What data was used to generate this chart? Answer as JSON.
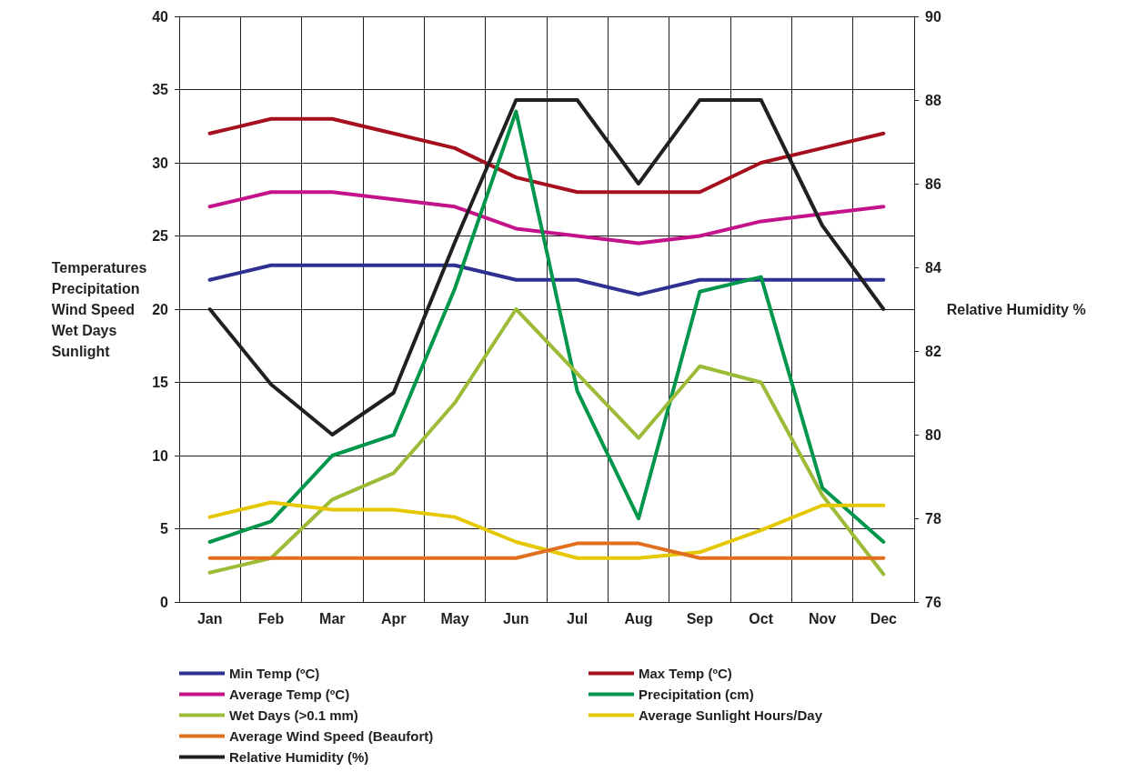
{
  "chart_data": {
    "type": "line",
    "categories": [
      "Jan",
      "Feb",
      "Mar",
      "Apr",
      "May",
      "Jun",
      "Jul",
      "Aug",
      "Sep",
      "Oct",
      "Nov",
      "Dec"
    ],
    "ylabel": "Temperatures\nPrecipitation\nWind Speed\nWet Days\nSunlight",
    "y2label": "Relative Humidity %",
    "ylim": [
      0,
      40
    ],
    "yticks": [
      0,
      5,
      10,
      15,
      20,
      25,
      30,
      35,
      40
    ],
    "y2lim": [
      76,
      90
    ],
    "y2ticks": [
      76,
      78,
      80,
      82,
      84,
      86,
      88,
      90
    ],
    "grid": true,
    "legend": "bottom",
    "marker": "none",
    "line_style": "solid",
    "series": [
      {
        "name": "Min Temp (ºC)",
        "color": "#2e3192",
        "values": [
          22,
          23,
          23,
          23,
          23,
          22,
          22,
          21,
          22,
          22,
          22,
          22
        ]
      },
      {
        "name": "Max Temp (ºC)",
        "color": "#a50f1e",
        "values": [
          32,
          33,
          33,
          32,
          31,
          29,
          28,
          28,
          28,
          30,
          31,
          32
        ]
      },
      {
        "name": "Average Temp (ºC)",
        "color": "#c4138a",
        "values": [
          27,
          28,
          28,
          27.5,
          27,
          25.5,
          25,
          24.5,
          25,
          26,
          26.5,
          27
        ]
      },
      {
        "name": "Precipitation (cm)",
        "color": "#00964b",
        "values": [
          4.1,
          5.5,
          10,
          11.4,
          21.4,
          33.5,
          14.4,
          5.7,
          21.2,
          22.2,
          7.8,
          4.1
        ]
      },
      {
        "name": "Wet Days (>0.1 mm)",
        "color": "#9cbb36",
        "values": [
          2,
          3,
          7,
          8.8,
          13.6,
          20,
          15.6,
          11.2,
          16.1,
          15,
          7.3,
          1.9
        ]
      },
      {
        "name": "Average Sunlight Hours/Day",
        "color": "#e6c800",
        "values": [
          5.8,
          6.8,
          6.3,
          6.3,
          5.8,
          4.1,
          3,
          3,
          3.4,
          4.9,
          6.6,
          6.6
        ]
      },
      {
        "name": "Average Wind Speed (Beaufort)",
        "color": "#e0701e",
        "values": [
          3,
          3,
          3,
          3,
          3,
          3,
          4,
          4,
          3,
          3,
          3,
          3
        ]
      },
      {
        "name": "Relative Humidity (%)",
        "color": "#231f20",
        "axis": "y2",
        "values": [
          83,
          81.2,
          80,
          81,
          84.6,
          88,
          88,
          86,
          88,
          88,
          85,
          83
        ]
      }
    ]
  }
}
